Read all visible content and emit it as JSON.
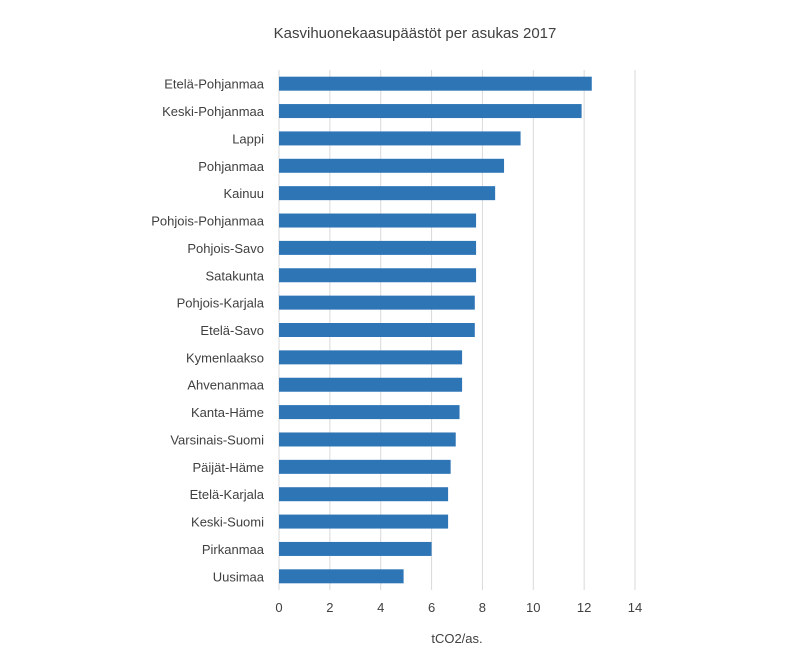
{
  "chart_data": {
    "type": "bar",
    "orientation": "horizontal",
    "title": "Kasvihuonekaasupäästöt per asukas 2017",
    "xlabel": "tCO2/as.",
    "ylabel": "",
    "categories": [
      "Etelä-Pohjanmaa",
      "Keski-Pohjanmaa",
      "Lappi",
      "Pohjanmaa",
      "Kainuu",
      "Pohjois-Pohjanmaa",
      "Pohjois-Savo",
      "Satakunta",
      "Pohjois-Karjala",
      "Etelä-Savo",
      "Kymenlaakso",
      "Ahvenanmaa",
      "Kanta-Häme",
      "Varsinais-Suomi",
      "Päijät-Häme",
      "Etelä-Karjala",
      "Keski-Suomi",
      "Pirkanmaa",
      "Uusimaa"
    ],
    "values": [
      12.3,
      11.9,
      9.5,
      8.85,
      8.5,
      7.75,
      7.75,
      7.75,
      7.7,
      7.7,
      7.2,
      7.2,
      7.1,
      6.95,
      6.75,
      6.65,
      6.65,
      6.0,
      4.9
    ],
    "xlim": [
      0,
      14
    ],
    "xticks": [
      "0",
      "2",
      "4",
      "6",
      "8",
      "10",
      "12",
      "14"
    ],
    "grid": "vertical",
    "legend": "none",
    "bar_color": "#2e75b6"
  }
}
